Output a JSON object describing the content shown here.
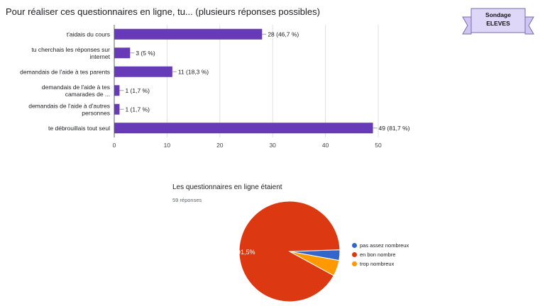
{
  "chart_data": [
    {
      "type": "bar",
      "orientation": "horizontal",
      "title": "Pour réaliser ces questionnaires en ligne, tu... (plusieurs réponses possibles)",
      "categories": [
        [
          "t'aidais du cours"
        ],
        [
          "tu cherchais les réponses sur",
          "internet"
        ],
        [
          "demandais de l'aide à tes parents"
        ],
        [
          "demandais de l'aide à tes",
          "camarades de ..."
        ],
        [
          "demandais de l'aide à d'autres",
          "personnes"
        ],
        [
          "te débrouillais tout seul"
        ]
      ],
      "values": [
        28,
        3,
        11,
        1,
        1,
        49
      ],
      "value_labels": [
        "28 (46,7 %)",
        "3 (5 %)",
        "11 (18,3 %)",
        "1 (1,7 %)",
        "1 (1,7 %)",
        "49 (81,7 %)"
      ],
      "xlim": [
        0,
        50
      ],
      "xticks": [
        0,
        10,
        20,
        30,
        40,
        50
      ],
      "grid": true,
      "color": "#673ab7"
    },
    {
      "type": "pie",
      "title": "Les questionnaires en ligne étaient",
      "subtitle": "59 réponses",
      "slices": [
        {
          "label": "pas assez nombreux",
          "value": 3.4,
          "color": "#3366cc"
        },
        {
          "label": "en bon nombre",
          "value": 91.5,
          "value_label": "91,5%",
          "color": "#dc3912"
        },
        {
          "label": "trop nombreux",
          "value": 5.1,
          "color": "#ff9900"
        }
      ],
      "legend_position": "right"
    }
  ],
  "banner": {
    "line1": "Sondage",
    "line2": "ELEVES",
    "fill_color": "#ded7f7",
    "stroke_color": "#7a6ab0"
  }
}
